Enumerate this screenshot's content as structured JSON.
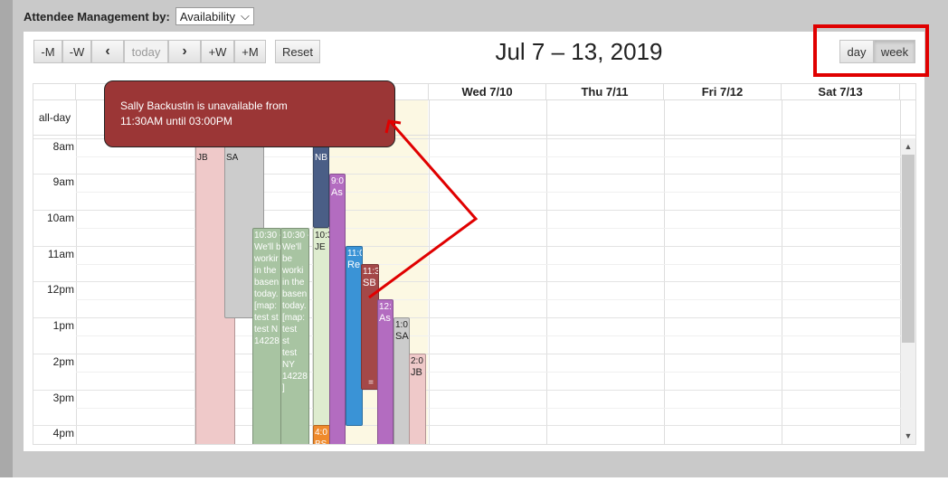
{
  "top": {
    "label": "Attendee Management by:",
    "select_value": "Availability"
  },
  "toolbar": {
    "prev_month": "-M",
    "prev_week": "-W",
    "prev": "‹",
    "today": "today",
    "next": "›",
    "next_week": "+W",
    "next_month": "+M",
    "reset": "Reset",
    "title": "Jul 7 – 13, 2019",
    "view_day": "day",
    "view_week": "week"
  },
  "columns": [
    "",
    "",
    "",
    "Wed 7/10",
    "Thu 7/11",
    "Fri 7/12",
    "Sat 7/13"
  ],
  "allday_label": "all-day",
  "times": [
    "8am",
    "9am",
    "10am",
    "11am",
    "12pm",
    "1pm",
    "2pm",
    "3pm",
    "4pm"
  ],
  "events": {
    "jb1": "JB",
    "sa1": "SA",
    "nb": "NB",
    "as1_time": "9:0",
    "as1_title": "As",
    "green1_time": "10:30 -",
    "green1_lines": [
      "We'll b",
      "workir",
      "in the",
      "basen",
      "today.",
      "[map:",
      "test st",
      "test N",
      "14228"
    ],
    "green2_time": "10:30 -",
    "green2_lines": [
      "We'll",
      "be",
      "worki",
      "in the",
      "basen",
      "today.",
      "[map:",
      "test",
      "st",
      "test",
      "NY",
      "14228",
      "]"
    ],
    "je_time": "10:3",
    "je_title": "JE",
    "re_time": "11:0",
    "re_title": "Re",
    "sb_time": "11:3",
    "sb_title": "SB",
    "sb_handle": "=",
    "as2_time": "12:",
    "as2_title": "As",
    "sa2_time": "1:0",
    "sa2_title": "SA",
    "jb2_time": "2:0",
    "jb2_title": "JB",
    "bs_time": "4:0",
    "bs_title": "BS"
  },
  "tooltip": {
    "line1": "Sally Backustin is unavailable from",
    "line2": "11:30AM until 03:00PM"
  },
  "colors": {
    "accent_red": "#e00000",
    "tooltip_bg": "#9b3636",
    "today_bg": "#fcf8e3"
  }
}
